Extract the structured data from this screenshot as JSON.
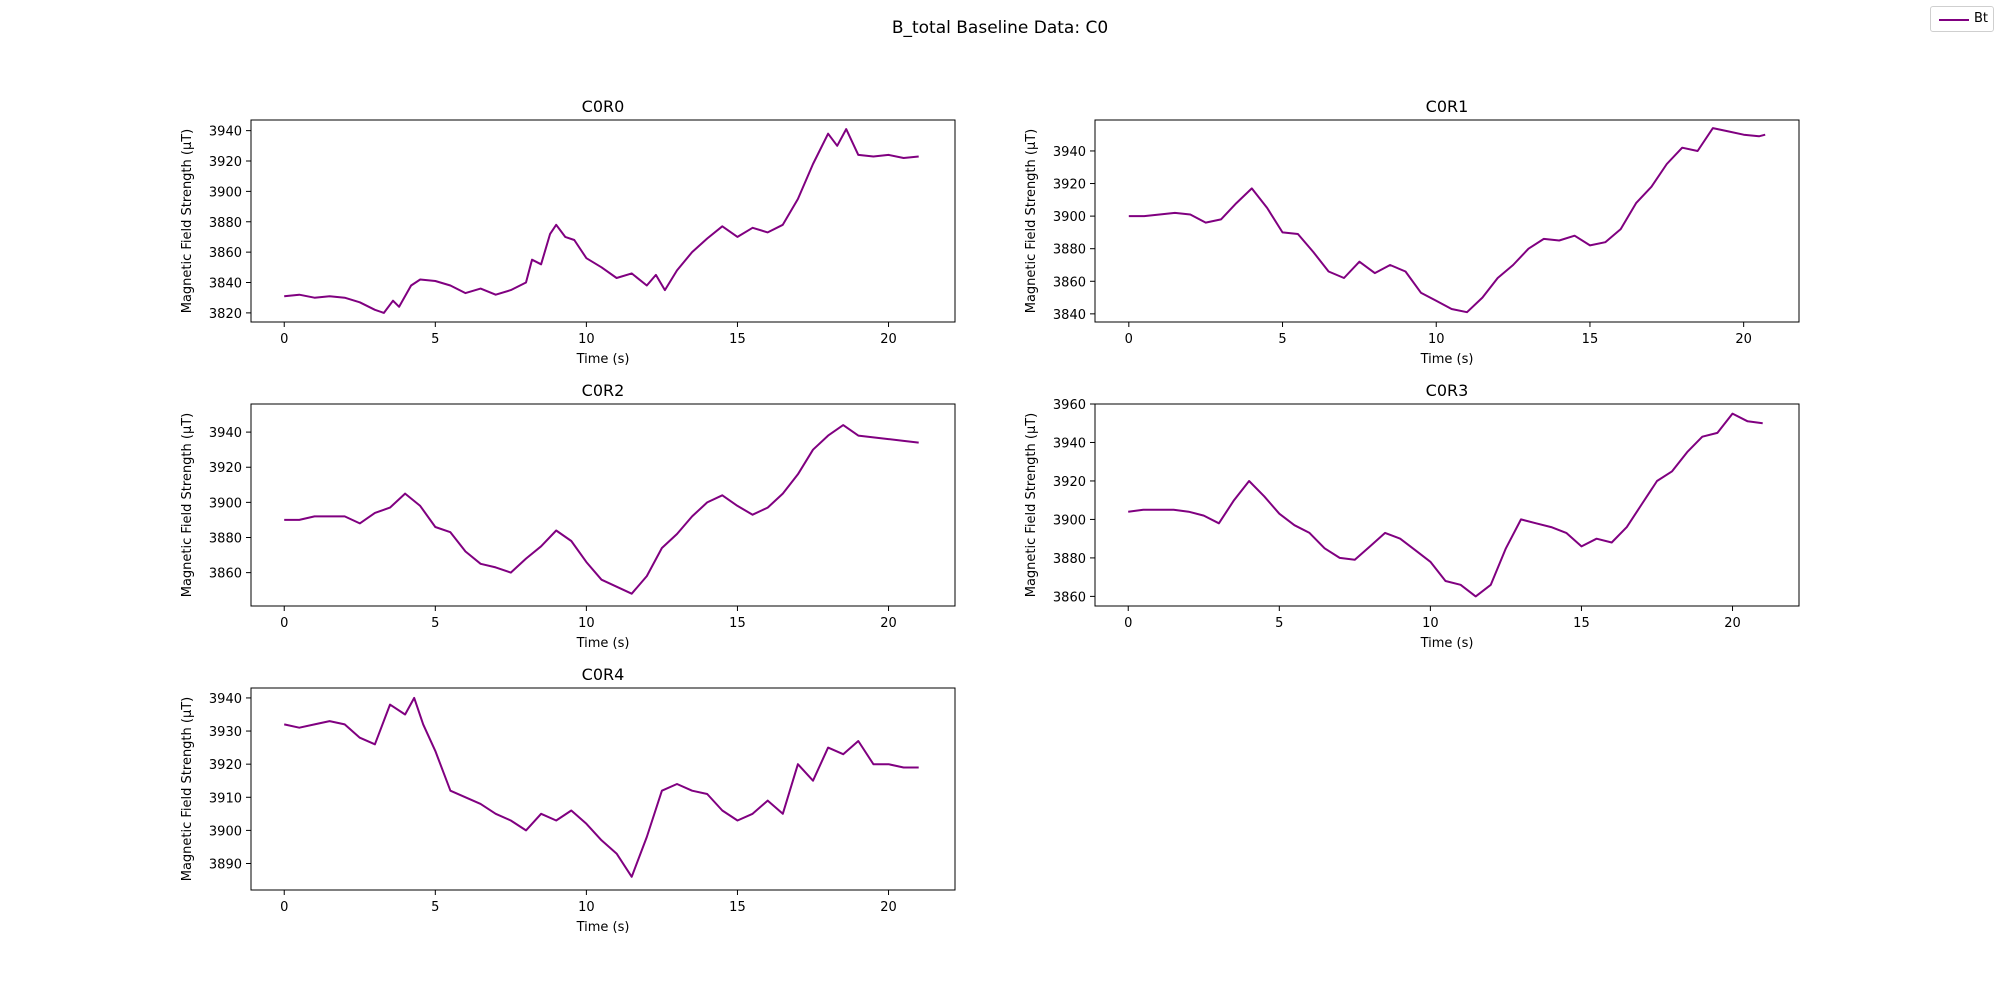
{
  "figure": {
    "suptitle": "B_total Baseline Data: C0",
    "line_color": "#800080"
  },
  "legend": {
    "label": "Bt",
    "placement": "top-right"
  },
  "chart_data": [
    {
      "type": "line",
      "title": "C0R0",
      "xlabel": "Time (s)",
      "ylabel": "Magnetic Field Strength ($\\mu T$)",
      "xlim": [
        -1.1,
        22.2
      ],
      "ylim": [
        3814,
        3947
      ],
      "xticks": [
        0,
        5,
        10,
        15,
        20
      ],
      "yticks": [
        3820,
        3840,
        3860,
        3880,
        3900,
        3920,
        3940
      ],
      "series": [
        {
          "name": "Bt",
          "x": [
            0,
            0.5,
            1,
            1.5,
            2,
            2.5,
            3,
            3.3,
            3.6,
            3.8,
            4.2,
            4.5,
            5,
            5.5,
            6,
            6.5,
            7,
            7.5,
            8,
            8.2,
            8.5,
            8.8,
            9,
            9.3,
            9.6,
            10,
            10.5,
            11,
            11.5,
            12,
            12.3,
            12.6,
            13,
            13.5,
            14,
            14.5,
            15,
            15.5,
            16,
            16.5,
            17,
            17.5,
            18,
            18.3,
            18.6,
            19,
            19.5,
            20,
            20.5,
            21
          ],
          "y": [
            3831,
            3832,
            3830,
            3831,
            3830,
            3827,
            3822,
            3820,
            3828,
            3824,
            3838,
            3842,
            3841,
            3838,
            3833,
            3836,
            3832,
            3835,
            3840,
            3855,
            3852,
            3872,
            3878,
            3870,
            3868,
            3856,
            3850,
            3843,
            3846,
            3838,
            3845,
            3835,
            3848,
            3860,
            3869,
            3877,
            3870,
            3876,
            3873,
            3878,
            3895,
            3918,
            3938,
            3930,
            3941,
            3924,
            3923,
            3924,
            3922,
            3923
          ]
        }
      ]
    },
    {
      "type": "line",
      "title": "C0R1",
      "xlabel": "Time (s)",
      "ylabel": "Magnetic Field Strength ($\\mu T$)",
      "xlim": [
        -1.1,
        21.8
      ],
      "ylim": [
        3835,
        3959
      ],
      "xticks": [
        0,
        5,
        10,
        15,
        20
      ],
      "yticks": [
        3840,
        3860,
        3880,
        3900,
        3920,
        3940
      ],
      "series": [
        {
          "name": "Bt",
          "x": [
            0,
            0.5,
            1,
            1.5,
            2,
            2.5,
            3,
            3.5,
            4,
            4.5,
            5,
            5.5,
            6,
            6.5,
            7,
            7.5,
            8,
            8.5,
            9,
            9.5,
            10,
            10.5,
            11,
            11.5,
            12,
            12.5,
            13,
            13.5,
            14,
            14.5,
            15,
            15.5,
            16,
            16.5,
            17,
            17.5,
            18,
            18.5,
            19,
            19.5,
            20,
            20.5,
            20.7
          ],
          "y": [
            3900,
            3900,
            3901,
            3902,
            3901,
            3896,
            3898,
            3908,
            3917,
            3905,
            3890,
            3889,
            3878,
            3866,
            3862,
            3872,
            3865,
            3870,
            3866,
            3853,
            3848,
            3843,
            3841,
            3850,
            3862,
            3870,
            3880,
            3886,
            3885,
            3888,
            3882,
            3884,
            3892,
            3908,
            3918,
            3932,
            3942,
            3940,
            3954,
            3952,
            3950,
            3949,
            3950
          ]
        }
      ]
    },
    {
      "type": "line",
      "title": "C0R2",
      "xlabel": "Time (s)",
      "ylabel": "Magnetic Field Strength ($\\mu T$)",
      "xlim": [
        -1.1,
        22.2
      ],
      "ylim": [
        3841,
        3956
      ],
      "xticks": [
        0,
        5,
        10,
        15,
        20
      ],
      "yticks": [
        3860,
        3880,
        3900,
        3920,
        3940
      ],
      "series": [
        {
          "name": "Bt",
          "x": [
            0,
            0.5,
            1,
            1.5,
            2,
            2.5,
            3,
            3.5,
            4,
            4.5,
            5,
            5.5,
            6,
            6.5,
            7,
            7.5,
            8,
            8.5,
            9,
            9.5,
            10,
            10.5,
            11,
            11.5,
            12,
            12.5,
            13,
            13.5,
            14,
            14.5,
            15,
            15.5,
            16,
            16.5,
            17,
            17.5,
            18,
            18.5,
            19,
            19.5,
            20,
            20.5,
            21
          ],
          "y": [
            3890,
            3890,
            3892,
            3892,
            3892,
            3888,
            3894,
            3897,
            3905,
            3898,
            3886,
            3883,
            3872,
            3865,
            3863,
            3860,
            3868,
            3875,
            3884,
            3878,
            3866,
            3856,
            3852,
            3848,
            3858,
            3874,
            3882,
            3892,
            3900,
            3904,
            3898,
            3893,
            3897,
            3905,
            3916,
            3930,
            3938,
            3944,
            3938,
            3937,
            3936,
            3935,
            3934
          ]
        }
      ]
    },
    {
      "type": "line",
      "title": "C0R3",
      "xlabel": "Time (s)",
      "ylabel": "Magnetic Field Strength ($\\mu T$)",
      "xlim": [
        -1.1,
        22.2
      ],
      "ylim": [
        3855,
        3960
      ],
      "xticks": [
        0,
        5,
        10,
        15,
        20
      ],
      "yticks": [
        3860,
        3880,
        3900,
        3920,
        3940,
        3960
      ],
      "series": [
        {
          "name": "Bt",
          "x": [
            0,
            0.5,
            1,
            1.5,
            2,
            2.5,
            3,
            3.5,
            4,
            4.5,
            5,
            5.5,
            6,
            6.5,
            7,
            7.5,
            8,
            8.5,
            9,
            9.5,
            10,
            10.5,
            11,
            11.5,
            12,
            12.5,
            13,
            13.5,
            14,
            14.5,
            15,
            15.5,
            16,
            16.5,
            17,
            17.5,
            18,
            18.5,
            19,
            19.5,
            20,
            20.5,
            21
          ],
          "y": [
            3904,
            3905,
            3905,
            3905,
            3904,
            3902,
            3898,
            3910,
            3920,
            3912,
            3903,
            3897,
            3893,
            3885,
            3880,
            3879,
            3886,
            3893,
            3890,
            3884,
            3878,
            3868,
            3866,
            3860,
            3866,
            3885,
            3900,
            3898,
            3896,
            3893,
            3886,
            3890,
            3888,
            3896,
            3908,
            3920,
            3925,
            3935,
            3943,
            3945,
            3955,
            3951,
            3950
          ]
        }
      ]
    },
    {
      "type": "line",
      "title": "C0R4",
      "xlabel": "Time (s)",
      "ylabel": "Magnetic Field Strength ($\\mu T$)",
      "xlim": [
        -1.1,
        22.2
      ],
      "ylim": [
        3882,
        3943
      ],
      "xticks": [
        0,
        5,
        10,
        15,
        20
      ],
      "yticks": [
        3890,
        3900,
        3910,
        3920,
        3930,
        3940
      ],
      "series": [
        {
          "name": "Bt",
          "x": [
            0,
            0.5,
            1,
            1.5,
            2,
            2.5,
            3,
            3.5,
            4,
            4.3,
            4.6,
            5,
            5.5,
            6,
            6.5,
            7,
            7.5,
            8,
            8.5,
            9,
            9.5,
            10,
            10.5,
            11,
            11.5,
            12,
            12.5,
            13,
            13.5,
            14,
            14.5,
            15,
            15.5,
            16,
            16.5,
            17,
            17.5,
            18,
            18.5,
            19,
            19.5,
            20,
            20.5,
            21
          ],
          "y": [
            3932,
            3931,
            3932,
            3933,
            3932,
            3928,
            3926,
            3938,
            3935,
            3940,
            3932,
            3924,
            3912,
            3910,
            3908,
            3905,
            3903,
            3900,
            3905,
            3903,
            3906,
            3902,
            3897,
            3893,
            3886,
            3898,
            3912,
            3914,
            3912,
            3911,
            3906,
            3903,
            3905,
            3909,
            3905,
            3920,
            3915,
            3925,
            3923,
            3927,
            3920,
            3920,
            3919,
            3919
          ]
        }
      ]
    }
  ]
}
